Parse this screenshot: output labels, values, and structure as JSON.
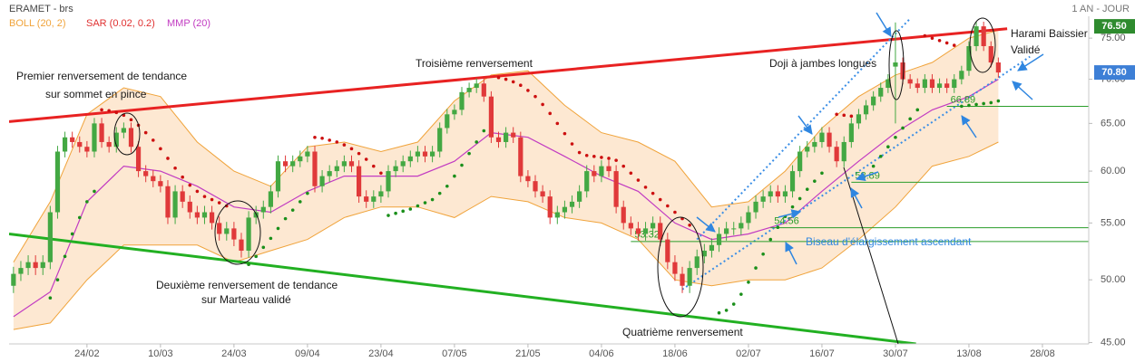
{
  "chart_data": {
    "type": "candlestick",
    "title": "ERAMET - brs",
    "period": "1 AN - JOUR",
    "indicators": [
      {
        "name": "BOLL (20, 2)",
        "color": "#f0a33a"
      },
      {
        "name": "SAR (0.02, 0.2)",
        "color": "#e03030"
      },
      {
        "name": "MMP (20)",
        "color": "#c23cc2"
      }
    ],
    "log_scale": true,
    "grid": false,
    "up_color": "#43a843",
    "down_color": "#e0393a",
    "xlim": [
      -0.6,
      146.3
    ],
    "xticks": [
      {
        "value": 10,
        "label": "24/02"
      },
      {
        "value": 20,
        "label": "10/03"
      },
      {
        "value": 30,
        "label": "24/03"
      },
      {
        "value": 40,
        "label": "09/04"
      },
      {
        "value": 50,
        "label": "23/04"
      },
      {
        "value": 60,
        "label": "07/05"
      },
      {
        "value": 70,
        "label": "21/05"
      },
      {
        "value": 80,
        "label": "04/06"
      },
      {
        "value": 90,
        "label": "18/06"
      },
      {
        "value": 100,
        "label": "02/07"
      },
      {
        "value": 110,
        "label": "16/07"
      },
      {
        "value": 120,
        "label": "30/07"
      },
      {
        "value": 130,
        "label": "13/08"
      },
      {
        "value": 140,
        "label": "28/08"
      }
    ],
    "ylim": [
      44.9,
      77.8
    ],
    "yticks": [
      {
        "value": 45,
        "label": "45.00"
      },
      {
        "value": 50,
        "label": "50.00"
      },
      {
        "value": 55,
        "label": "55.00"
      },
      {
        "value": 60,
        "label": "60.00"
      },
      {
        "value": 65,
        "label": "65.00"
      },
      {
        "value": 70,
        "label": "70.00"
      },
      {
        "value": 75,
        "label": "75.00"
      }
    ],
    "open": [
      49.5,
      50.5,
      51,
      51.5,
      51,
      51.5,
      56,
      62,
      63.5,
      63,
      62.5,
      62,
      65,
      63,
      62.5,
      64,
      64.5,
      62.5,
      60,
      59.5,
      59,
      58.5,
      55.5,
      58,
      57,
      56,
      55.5,
      56,
      55,
      54,
      54.5,
      53.5,
      52.5,
      55.5,
      56,
      56.5,
      58,
      61,
      60.5,
      61,
      61.5,
      62,
      58.5,
      59.5,
      60,
      60.5,
      61,
      60.5,
      57.5,
      57,
      57.5,
      58,
      60,
      60.5,
      61,
      61.5,
      62,
      61.5,
      62,
      64.5,
      66,
      66.5,
      68.5,
      69,
      69.5,
      68,
      63.5,
      63,
      64,
      63.5,
      59.5,
      59,
      58,
      57.5,
      55.5,
      56,
      56.5,
      57,
      58,
      60,
      59.5,
      60.5,
      60,
      56.5,
      55,
      54.5,
      54,
      54.5,
      55,
      53.5,
      51.5,
      50.5,
      49.5,
      51,
      52,
      52.5,
      53,
      54,
      54.5,
      54.5,
      55,
      56,
      57,
      57.5,
      58,
      57.5,
      58,
      60,
      62,
      62.5,
      63,
      64,
      62.5,
      61,
      63,
      65,
      66,
      67,
      68,
      69,
      71.5,
      72,
      70,
      69.5,
      69,
      70,
      69,
      69.5,
      69,
      70,
      71,
      74,
      76.5,
      74,
      72
    ],
    "high": [
      51.1,
      51.6,
      52.1,
      52.1,
      52.1,
      56.6,
      62.6,
      64.1,
      64.1,
      63.6,
      63.1,
      65.6,
      65.6,
      63.6,
      64.6,
      65.1,
      65.1,
      63.1,
      60.6,
      60.1,
      59.6,
      59.1,
      58.6,
      58.6,
      57.6,
      56.6,
      56.6,
      56.6,
      55.6,
      55.1,
      55.1,
      54.1,
      56.1,
      56.6,
      57.1,
      58.6,
      61.6,
      61.6,
      61.6,
      62.1,
      62.6,
      62.6,
      60.1,
      60.6,
      61.1,
      61.6,
      61.6,
      61.1,
      58.1,
      58.1,
      58.6,
      60.6,
      61.1,
      61.6,
      62.1,
      62.6,
      62.6,
      62.6,
      65.1,
      66.6,
      67.1,
      69.1,
      69.6,
      70.1,
      70.1,
      68.6,
      64.1,
      64.6,
      64.6,
      64.1,
      60.1,
      59.6,
      58.6,
      58.1,
      56.6,
      57.1,
      57.6,
      58.6,
      60.6,
      60.6,
      61.1,
      61.1,
      60.6,
      57.1,
      55.6,
      55.1,
      55.1,
      55.6,
      55.6,
      54.1,
      52.1,
      51.1,
      51.6,
      52.6,
      53.1,
      53.6,
      54.6,
      55.1,
      55.1,
      55.6,
      56.6,
      57.6,
      58.1,
      58.6,
      58.6,
      58.6,
      60.6,
      62.6,
      63.1,
      63.6,
      64.6,
      64.6,
      63.1,
      63.6,
      65.6,
      66.6,
      67.6,
      68.6,
      69.6,
      70.6,
      77,
      72.6,
      70.6,
      70.1,
      70.6,
      70.6,
      70.1,
      70.1,
      70.6,
      71.6,
      74.6,
      77.1,
      77.1,
      74.6,
      72.6
    ],
    "low": [
      48.9,
      49.9,
      50.4,
      50.4,
      50.4,
      50.9,
      55.4,
      61.4,
      62.4,
      61.9,
      61.4,
      61.4,
      62.4,
      61.9,
      61.9,
      63.4,
      61.9,
      59.4,
      58.9,
      58.4,
      57.9,
      54.9,
      54.9,
      56.4,
      55.4,
      54.9,
      54.9,
      54.4,
      53.4,
      53.4,
      52.9,
      51.9,
      51.9,
      54.9,
      55.4,
      55.9,
      57.4,
      59.9,
      59.9,
      60.4,
      60.9,
      57.9,
      57.9,
      58.9,
      59.4,
      59.9,
      59.9,
      56.9,
      56.4,
      56.4,
      56.9,
      57.4,
      59.4,
      59.9,
      60.4,
      60.9,
      60.9,
      60.9,
      61.4,
      63.9,
      65.4,
      65.9,
      67.9,
      68.4,
      67.4,
      62.9,
      62.4,
      62.4,
      62.9,
      58.9,
      58.4,
      57.4,
      56.9,
      54.9,
      54.9,
      55.4,
      55.9,
      56.4,
      57.4,
      58.9,
      58.9,
      59.4,
      55.9,
      54.4,
      53.9,
      53.4,
      53.4,
      53.9,
      52.9,
      50.9,
      49.9,
      48.9,
      48.9,
      50.4,
      51.4,
      51.9,
      52.4,
      53.4,
      53.9,
      53.9,
      54.4,
      55.4,
      56.4,
      56.9,
      56.9,
      56.9,
      57.4,
      59.4,
      61.4,
      61.9,
      62.4,
      61.9,
      60.4,
      60.4,
      62.4,
      64.4,
      65.4,
      66.4,
      67.4,
      68.4,
      65,
      69.4,
      68.9,
      68.4,
      68.4,
      68.4,
      68.4,
      68.4,
      68.4,
      69.4,
      70.4,
      73.4,
      73.4,
      71.4,
      70.2
    ],
    "close": [
      50.5,
      51,
      51.5,
      51,
      51.5,
      56,
      62,
      63.5,
      63,
      62.5,
      62,
      65,
      63,
      62.5,
      64,
      64.5,
      62.5,
      60,
      59.5,
      59,
      58.5,
      55.5,
      58,
      57,
      56,
      55.5,
      56,
      55,
      54,
      54.5,
      53.5,
      52.5,
      55.5,
      56,
      56.5,
      58,
      61,
      60.5,
      61,
      61.5,
      62,
      58.5,
      59.5,
      60,
      60.5,
      61,
      60.5,
      57.5,
      57,
      57.5,
      58,
      60,
      60.5,
      61,
      61.5,
      62,
      61.5,
      62,
      64.5,
      66,
      66.5,
      68.5,
      69,
      69.5,
      68,
      63.5,
      63,
      64,
      63.5,
      59.5,
      59,
      58,
      57.5,
      55.5,
      56,
      56.5,
      57,
      58,
      60,
      59.5,
      60.5,
      60,
      56.5,
      55,
      54.5,
      54,
      54.5,
      55,
      53.5,
      51.5,
      50.5,
      49.5,
      51,
      52,
      52.5,
      53,
      54,
      54.5,
      54.5,
      55,
      56,
      57,
      57.5,
      58,
      57.5,
      58,
      60,
      62,
      62.5,
      63,
      64,
      62.5,
      61,
      63,
      65,
      66,
      67,
      68,
      69,
      70,
      72,
      70,
      69.5,
      69,
      70,
      69,
      69.5,
      69,
      70,
      71,
      74,
      76.5,
      74,
      72,
      70.8
    ],
    "bollinger": {
      "color": "#f0a33a",
      "fill": "#fde8d2",
      "x": [
        0,
        5,
        10,
        15,
        20,
        25,
        30,
        35,
        40,
        45,
        50,
        55,
        60,
        65,
        70,
        75,
        80,
        85,
        90,
        95,
        100,
        105,
        110,
        115,
        120,
        125,
        130,
        134
      ],
      "upper": [
        51.5,
        57,
        66,
        69,
        68,
        63,
        60,
        58.5,
        62.5,
        63,
        62,
        63,
        67.5,
        70.5,
        71,
        67,
        64,
        63,
        61,
        56.5,
        57,
        60,
        64.5,
        68,
        70.5,
        72,
        75,
        76
      ],
      "lower": [
        46,
        46.5,
        50,
        53,
        53,
        53,
        51.5,
        52.5,
        53.5,
        55.5,
        56.5,
        56.5,
        55.5,
        57.5,
        57,
        55.5,
        55,
        53.5,
        50,
        49.5,
        50,
        50,
        51,
        53.5,
        56.5,
        60.5,
        61.5,
        63
      ]
    },
    "mmp": {
      "color": "#c23cc2",
      "x": [
        0,
        5,
        10,
        15,
        20,
        25,
        30,
        35,
        40,
        45,
        50,
        55,
        60,
        65,
        70,
        75,
        80,
        85,
        90,
        95,
        100,
        105,
        110,
        115,
        120,
        125,
        130,
        134
      ],
      "values": [
        47,
        49,
        57,
        60.5,
        60,
        58.5,
        56.5,
        56,
        58,
        59.5,
        59.5,
        59.5,
        61,
        64,
        63.5,
        61.5,
        59.5,
        58,
        55,
        53.5,
        54,
        55,
        58,
        61,
        64,
        66.5,
        68,
        70
      ]
    },
    "sar": [
      {
        "color": "#cc1010",
        "x": [
          12,
          13,
          14,
          15,
          16,
          17,
          18,
          19,
          20,
          21,
          22,
          23,
          24,
          25,
          26,
          27,
          28,
          29,
          41,
          42,
          43,
          44,
          45,
          46,
          47,
          48,
          49,
          50,
          66,
          67,
          68,
          69,
          70,
          71,
          72,
          73,
          74,
          75,
          76,
          77,
          78,
          79,
          80,
          81,
          82,
          83,
          84,
          85,
          86,
          87,
          88,
          89,
          90,
          91,
          92,
          112,
          113,
          114,
          124,
          125,
          126,
          127,
          128
        ],
        "values": [
          66.5,
          66.4,
          66.2,
          65.9,
          65.4,
          64.8,
          64,
          63.2,
          62.3,
          61.3,
          60.3,
          59.4,
          58.6,
          58,
          57.5,
          57.2,
          56.9,
          56.6,
          63.5,
          63.4,
          63.2,
          63,
          62.7,
          62.3,
          61.8,
          61.2,
          60.5,
          59.8,
          70.2,
          70,
          69.7,
          69.3,
          68.7,
          68,
          67.1,
          66.1,
          65,
          63.9,
          62.8,
          61.9,
          61.6,
          61.5,
          61.4,
          61.3,
          61.1,
          60.5,
          59.8,
          59.1,
          58.4,
          57.8,
          57.2,
          56.6,
          56,
          55.4,
          54.8,
          66,
          65.9,
          65.8,
          75.3,
          75,
          74.7,
          74.4,
          74.1
        ]
      },
      {
        "color": "#1a8f1a",
        "x": [
          5,
          6,
          7,
          8,
          9,
          10,
          11,
          32,
          33,
          34,
          35,
          36,
          37,
          38,
          39,
          40,
          51,
          52,
          53,
          54,
          55,
          56,
          57,
          58,
          59,
          60,
          61,
          62,
          63,
          64,
          96,
          97,
          98,
          99,
          100,
          101,
          102,
          103,
          104,
          105,
          106,
          107,
          108,
          109,
          110,
          117,
          118,
          119,
          120,
          121,
          122,
          123,
          129,
          130,
          131,
          132,
          133,
          134
        ],
        "values": [
          48.5,
          50,
          52,
          54,
          55.5,
          57,
          58,
          51.3,
          52,
          52.8,
          53.6,
          54.5,
          55.4,
          56.2,
          57,
          57.8,
          55.7,
          55.9,
          56.1,
          56.3,
          56.6,
          56.9,
          57.2,
          57.8,
          58.5,
          59.5,
          60.6,
          61.8,
          63,
          64.2,
          47.3,
          47.5,
          48,
          48.8,
          49.8,
          51,
          52.2,
          53.5,
          54.6,
          55.6,
          56.5,
          57.3,
          58.2,
          59,
          59.8,
          60.5,
          61.5,
          62.5,
          63.5,
          64.5,
          65.5,
          66.5,
          66.9,
          67,
          67.1,
          67.2,
          67.3,
          67.5
        ]
      }
    ],
    "trendlines": [
      {
        "color": "#e82222",
        "x": [
          -0.6,
          135.2
        ],
        "values": [
          65.2,
          76.2
        ]
      },
      {
        "color": "#22b022",
        "x": [
          -0.6,
          122.8
        ],
        "values": [
          54,
          44.9
        ]
      },
      {
        "color": "#3a8ee6",
        "dashed": true,
        "x": [
          93,
          122
        ],
        "values": [
          53.5,
          77.5
        ]
      },
      {
        "color": "#3a8ee6",
        "dashed": true,
        "x": [
          91,
          138.3
        ],
        "values": [
          49.2,
          72.7
        ]
      }
    ],
    "levels": [
      {
        "x": 84,
        "value": 53.32
      },
      {
        "x": 103,
        "value": 54.56
      },
      {
        "x": 114,
        "value": 58.89
      },
      {
        "x": 127,
        "value": 66.89
      }
    ],
    "level_color": "#2a9d2a",
    "price_tags": [
      {
        "value": 76.5,
        "label": "76.50",
        "color": "#2e8b2e"
      },
      {
        "value": 70.8,
        "label": "70.80",
        "color": "#3d7fd6"
      }
    ],
    "annotations": [
      "Premier renversement de tendance",
      "sur sommet en pince",
      "Troisième renversement",
      "Doji à jambes longues",
      "Harami Baissier",
      "Validé",
      "Deuxième renversement de tendance",
      "sur Marteau validé",
      "Quatrième renversement",
      "Biseau d'élargissement ascendant"
    ]
  }
}
